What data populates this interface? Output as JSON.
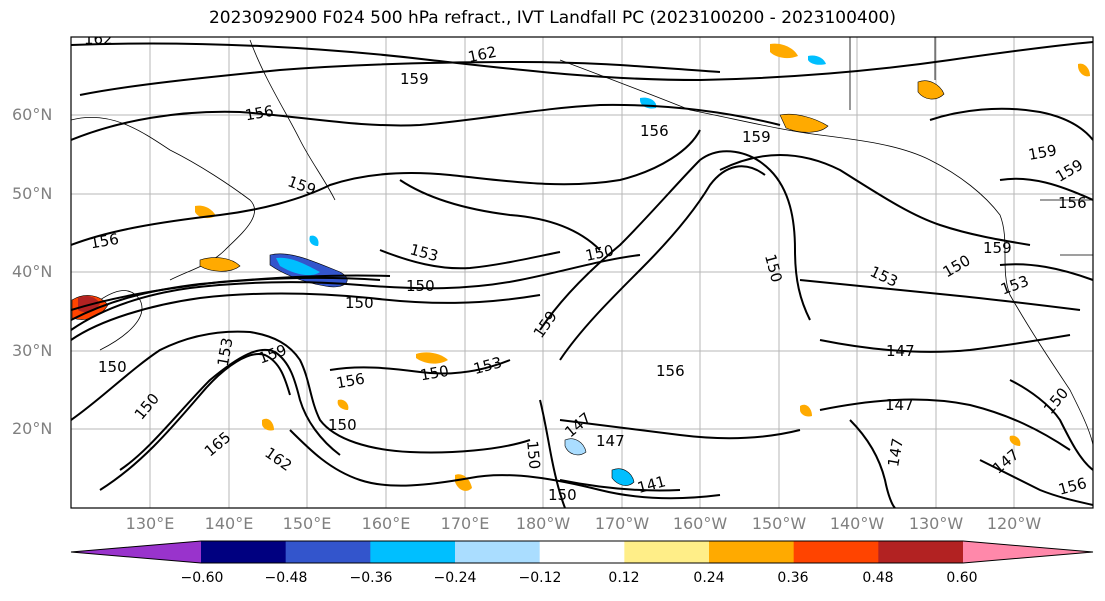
{
  "title": "2023092900 F024 500 hPa refract., IVT Landfall PC (2023100200 - 2023100400)",
  "lat_labels": [
    "60°N",
    "50°N",
    "40°N",
    "30°N",
    "20°N"
  ],
  "lon_labels": [
    "130°E",
    "140°E",
    "150°E",
    "160°E",
    "170°E",
    "180°W",
    "170°W",
    "160°W",
    "150°W",
    "140°W",
    "130°W",
    "120°W"
  ],
  "colorbar": {
    "colors": [
      "#9933cc",
      "#000080",
      "#3355cc",
      "#00bfff",
      "#aaddff",
      "#ffffff",
      "#ffee88",
      "#ffaa00",
      "#ff4400",
      "#b22222",
      "#ff88aa"
    ],
    "ticks": [
      "−0.60",
      "−0.48",
      "−0.36",
      "−0.24",
      "−0.12",
      "0.12",
      "0.24",
      "0.36",
      "0.48",
      "0.60"
    ]
  },
  "contour_labels": [
    "162",
    "159",
    "162",
    "156",
    "156",
    "159",
    "159",
    "159",
    "159",
    "156",
    "156",
    "153",
    "150",
    "150",
    "150",
    "153",
    "159",
    "153",
    "150",
    "153",
    "150",
    "147",
    "156",
    "156",
    "150",
    "153",
    "150",
    "159",
    "159",
    "165",
    "162",
    "150",
    "147",
    "147",
    "150",
    "147",
    "141",
    "150",
    "147",
    "150",
    "150",
    "147",
    "156"
  ]
}
